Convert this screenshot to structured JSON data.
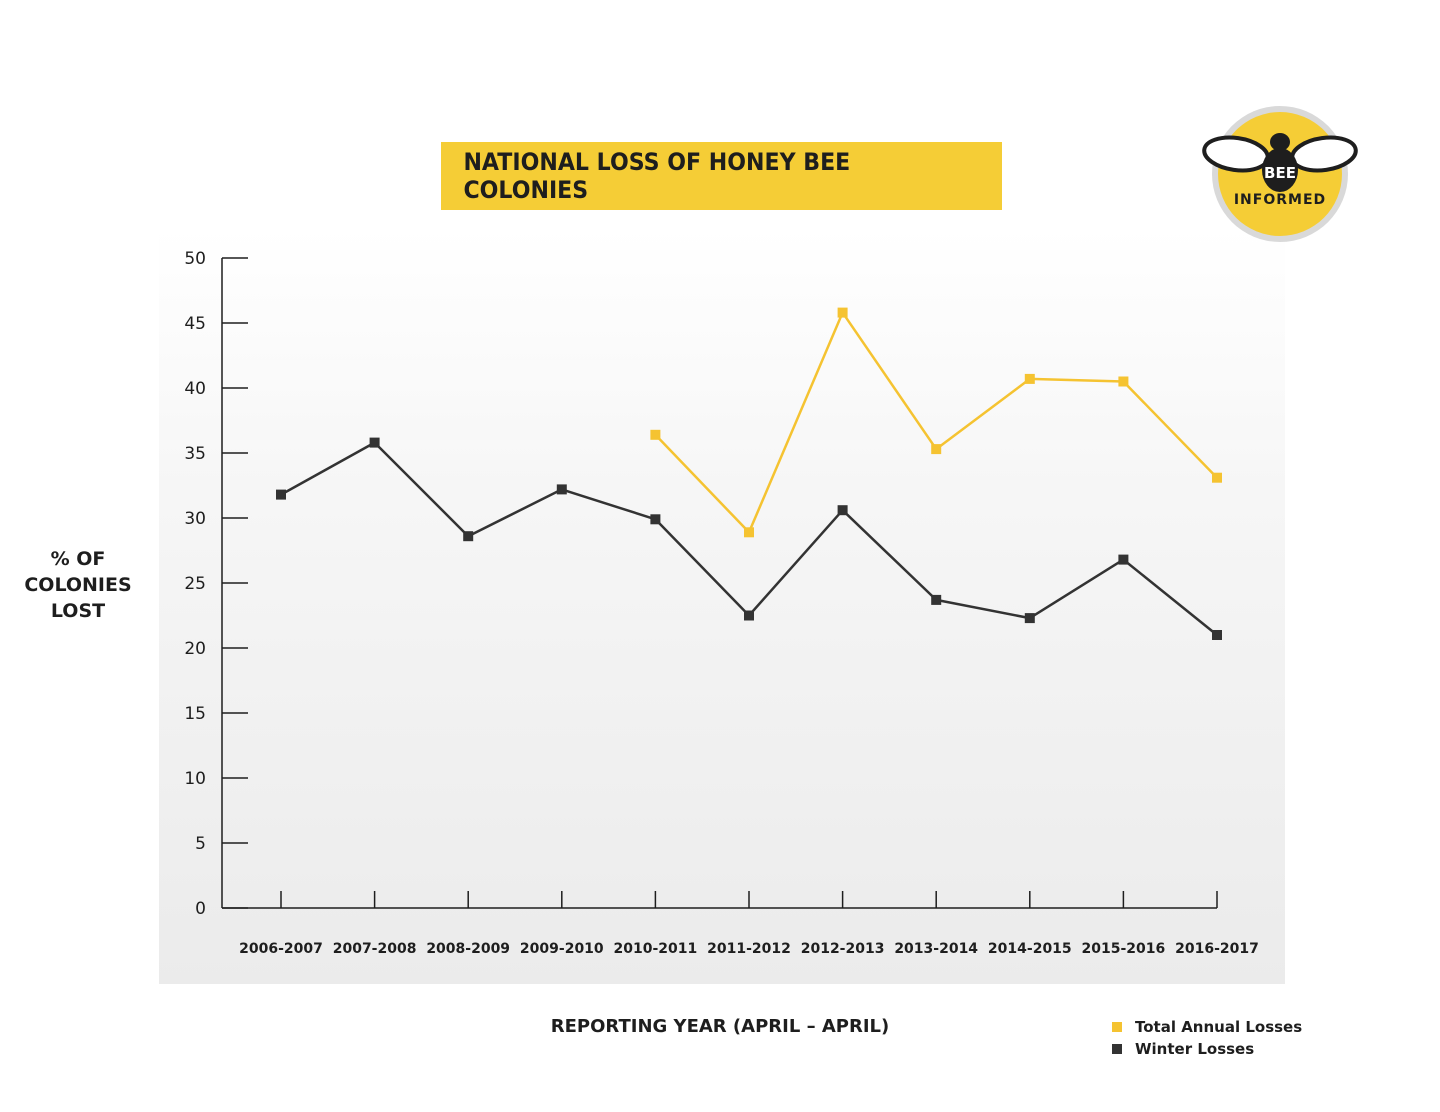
{
  "colors": {
    "total": "#f5c331",
    "winter": "#333333",
    "title_bg": "#f5cd36"
  },
  "logo": {
    "line1": "BEE",
    "line2": "INFORMED"
  },
  "chart_data": {
    "type": "line",
    "title": "NATIONAL LOSS OF HONEY BEE COLONIES",
    "xlabel": "REPORTING YEAR (APRIL – APRIL)",
    "ylabel_lines": [
      "% OF",
      "COLONIES",
      "LOST"
    ],
    "ylim": [
      0,
      50
    ],
    "yticks": [
      0,
      5,
      10,
      15,
      20,
      25,
      30,
      35,
      40,
      45,
      50
    ],
    "categories": [
      "2006-2007",
      "2007-2008",
      "2008-2009",
      "2009-2010",
      "2010-2011",
      "2011-2012",
      "2012-2013",
      "2013-2014",
      "2014-2015",
      "2015-2016",
      "2016-2017"
    ],
    "series": [
      {
        "name": "Total Annual Losses",
        "color": "#f5c331",
        "values": [
          null,
          null,
          null,
          null,
          36.4,
          28.9,
          45.8,
          35.3,
          40.7,
          40.5,
          33.1
        ]
      },
      {
        "name": "Winter Losses",
        "color": "#333333",
        "values": [
          31.8,
          35.8,
          28.6,
          32.2,
          29.9,
          22.5,
          30.6,
          23.7,
          22.3,
          26.8,
          21.0
        ]
      }
    ],
    "legend_position": "bottom-right",
    "grid": false
  }
}
